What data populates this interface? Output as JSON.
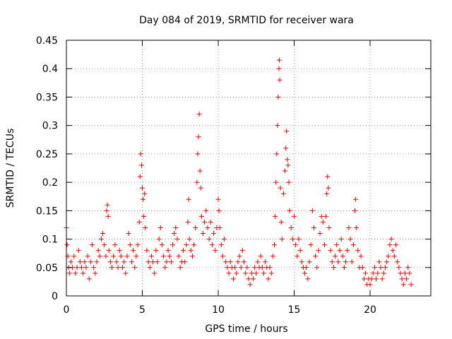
{
  "chart_data": {
    "type": "scatter",
    "title": "Day 084 of 2019, SRMTID for receiver wara",
    "xlabel": "GPS time / hours",
    "ylabel": "SRMTID / TECUs",
    "xlim": [
      0,
      24
    ],
    "ylim": [
      0,
      0.45
    ],
    "x_ticks": [
      0,
      5,
      10,
      15,
      20
    ],
    "x_tick_labels": [
      "0",
      "5",
      "10",
      "15",
      "20"
    ],
    "y_ticks": [
      0,
      0.05,
      0.1,
      0.15,
      0.2,
      0.25,
      0.3,
      0.35,
      0.4,
      0.45
    ],
    "y_tick_labels": [
      "0",
      "0.05",
      "0.1",
      "0.15",
      "0.2",
      "0.25",
      "0.3",
      "0.35",
      "0.4",
      "0.45"
    ],
    "grid": true,
    "marker": "plus",
    "color": "#ee0000",
    "series": [
      {
        "name": "SRMTID",
        "points": [
          [
            0.0,
            0.12
          ],
          [
            0.05,
            0.09
          ],
          [
            0.1,
            0.07
          ],
          [
            0.15,
            0.05
          ],
          [
            0.2,
            0.04
          ],
          [
            0.3,
            0.06
          ],
          [
            0.4,
            0.05
          ],
          [
            0.5,
            0.07
          ],
          [
            0.6,
            0.04
          ],
          [
            0.7,
            0.05
          ],
          [
            0.8,
            0.08
          ],
          [
            0.9,
            0.06
          ],
          [
            1.0,
            0.05
          ],
          [
            1.1,
            0.04
          ],
          [
            1.2,
            0.06
          ],
          [
            1.3,
            0.05
          ],
          [
            1.4,
            0.07
          ],
          [
            1.5,
            0.03
          ],
          [
            1.6,
            0.06
          ],
          [
            1.7,
            0.09
          ],
          [
            1.8,
            0.05
          ],
          [
            1.9,
            0.04
          ],
          [
            2.0,
            0.06
          ],
          [
            2.1,
            0.08
          ],
          [
            2.2,
            0.07
          ],
          [
            2.3,
            0.1
          ],
          [
            2.4,
            0.11
          ],
          [
            2.5,
            0.09
          ],
          [
            2.6,
            0.07
          ],
          [
            2.65,
            0.15
          ],
          [
            2.7,
            0.16
          ],
          [
            2.75,
            0.14
          ],
          [
            2.8,
            0.08
          ],
          [
            2.9,
            0.06
          ],
          [
            3.0,
            0.05
          ],
          [
            3.1,
            0.07
          ],
          [
            3.2,
            0.09
          ],
          [
            3.3,
            0.06
          ],
          [
            3.4,
            0.05
          ],
          [
            3.5,
            0.08
          ],
          [
            3.6,
            0.07
          ],
          [
            3.7,
            0.05
          ],
          [
            3.8,
            0.06
          ],
          [
            3.9,
            0.04
          ],
          [
            4.0,
            0.07
          ],
          [
            4.1,
            0.11
          ],
          [
            4.2,
            0.09
          ],
          [
            4.3,
            0.06
          ],
          [
            4.4,
            0.08
          ],
          [
            4.5,
            0.05
          ],
          [
            4.6,
            0.07
          ],
          [
            4.7,
            0.09
          ],
          [
            4.8,
            0.13
          ],
          [
            4.85,
            0.21
          ],
          [
            4.9,
            0.25
          ],
          [
            4.95,
            0.23
          ],
          [
            5.0,
            0.19
          ],
          [
            5.05,
            0.17
          ],
          [
            5.1,
            0.14
          ],
          [
            5.15,
            0.18
          ],
          [
            5.2,
            0.12
          ],
          [
            5.3,
            0.08
          ],
          [
            5.4,
            0.06
          ],
          [
            5.5,
            0.05
          ],
          [
            5.6,
            0.07
          ],
          [
            5.7,
            0.06
          ],
          [
            5.8,
            0.04
          ],
          [
            5.9,
            0.08
          ],
          [
            6.0,
            0.06
          ],
          [
            6.1,
            0.1
          ],
          [
            6.2,
            0.12
          ],
          [
            6.3,
            0.09
          ],
          [
            6.4,
            0.07
          ],
          [
            6.5,
            0.05
          ],
          [
            6.6,
            0.06
          ],
          [
            6.7,
            0.08
          ],
          [
            6.8,
            0.07
          ],
          [
            6.9,
            0.06
          ],
          [
            7.0,
            0.09
          ],
          [
            7.1,
            0.11
          ],
          [
            7.2,
            0.12
          ],
          [
            7.3,
            0.1
          ],
          [
            7.4,
            0.07
          ],
          [
            7.5,
            0.05
          ],
          [
            7.6,
            0.06
          ],
          [
            7.7,
            0.08
          ],
          [
            7.8,
            0.06
          ],
          [
            7.9,
            0.09
          ],
          [
            8.0,
            0.13
          ],
          [
            8.05,
            0.17
          ],
          [
            8.1,
            0.1
          ],
          [
            8.2,
            0.08
          ],
          [
            8.3,
            0.07
          ],
          [
            8.4,
            0.09
          ],
          [
            8.5,
            0.12
          ],
          [
            8.6,
            0.2
          ],
          [
            8.65,
            0.25
          ],
          [
            8.7,
            0.28
          ],
          [
            8.75,
            0.32
          ],
          [
            8.8,
            0.22
          ],
          [
            8.85,
            0.19
          ],
          [
            8.9,
            0.14
          ],
          [
            9.0,
            0.11
          ],
          [
            9.1,
            0.13
          ],
          [
            9.2,
            0.15
          ],
          [
            9.3,
            0.12
          ],
          [
            9.4,
            0.1
          ],
          [
            9.5,
            0.13
          ],
          [
            9.6,
            0.09
          ],
          [
            9.7,
            0.11
          ],
          [
            9.8,
            0.08
          ],
          [
            9.9,
            0.12
          ],
          [
            10.0,
            0.17
          ],
          [
            10.05,
            0.15
          ],
          [
            10.1,
            0.12
          ],
          [
            10.2,
            0.09
          ],
          [
            10.3,
            0.07
          ],
          [
            10.4,
            0.1
          ],
          [
            10.5,
            0.06
          ],
          [
            10.6,
            0.05
          ],
          [
            10.7,
            0.04
          ],
          [
            10.8,
            0.06
          ],
          [
            10.9,
            0.05
          ],
          [
            11.0,
            0.03
          ],
          [
            11.1,
            0.05
          ],
          [
            11.2,
            0.04
          ],
          [
            11.3,
            0.06
          ],
          [
            11.4,
            0.07
          ],
          [
            11.5,
            0.05
          ],
          [
            11.6,
            0.08
          ],
          [
            11.7,
            0.06
          ],
          [
            11.8,
            0.04
          ],
          [
            11.9,
            0.05
          ],
          [
            12.0,
            0.03
          ],
          [
            12.1,
            0.02
          ],
          [
            12.2,
            0.04
          ],
          [
            12.3,
            0.03
          ],
          [
            12.4,
            0.05
          ],
          [
            12.5,
            0.04
          ],
          [
            12.6,
            0.06
          ],
          [
            12.7,
            0.05
          ],
          [
            12.8,
            0.07
          ],
          [
            12.9,
            0.05
          ],
          [
            13.0,
            0.04
          ],
          [
            13.1,
            0.06
          ],
          [
            13.2,
            0.05
          ],
          [
            13.3,
            0.03
          ],
          [
            13.4,
            0.05
          ],
          [
            13.5,
            0.04
          ],
          [
            13.6,
            0.07
          ],
          [
            13.7,
            0.09
          ],
          [
            13.75,
            0.14
          ],
          [
            13.8,
            0.2
          ],
          [
            13.85,
            0.25
          ],
          [
            13.9,
            0.3
          ],
          [
            13.95,
            0.35
          ],
          [
            14.0,
            0.4
          ],
          [
            14.02,
            0.415
          ],
          [
            14.05,
            0.38
          ],
          [
            14.1,
            0.19
          ],
          [
            14.15,
            0.13
          ],
          [
            14.2,
            0.1
          ],
          [
            14.3,
            0.18
          ],
          [
            14.4,
            0.22
          ],
          [
            14.45,
            0.26
          ],
          [
            14.5,
            0.29
          ],
          [
            14.55,
            0.24
          ],
          [
            14.6,
            0.23
          ],
          [
            14.65,
            0.2
          ],
          [
            14.7,
            0.15
          ],
          [
            14.8,
            0.12
          ],
          [
            14.9,
            0.1
          ],
          [
            15.0,
            0.14
          ],
          [
            15.1,
            0.09
          ],
          [
            15.2,
            0.07
          ],
          [
            15.3,
            0.1
          ],
          [
            15.4,
            0.08
          ],
          [
            15.5,
            0.06
          ],
          [
            15.6,
            0.05
          ],
          [
            15.7,
            0.04
          ],
          [
            15.8,
            0.05
          ],
          [
            15.9,
            0.03
          ],
          [
            16.0,
            0.06
          ],
          [
            16.1,
            0.09
          ],
          [
            16.2,
            0.15
          ],
          [
            16.3,
            0.12
          ],
          [
            16.4,
            0.07
          ],
          [
            16.5,
            0.05
          ],
          [
            16.6,
            0.08
          ],
          [
            16.7,
            0.11
          ],
          [
            16.8,
            0.14
          ],
          [
            16.9,
            0.13
          ],
          [
            17.0,
            0.09
          ],
          [
            17.1,
            0.14
          ],
          [
            17.15,
            0.18
          ],
          [
            17.2,
            0.21
          ],
          [
            17.25,
            0.19
          ],
          [
            17.3,
            0.12
          ],
          [
            17.4,
            0.08
          ],
          [
            17.5,
            0.06
          ],
          [
            17.6,
            0.05
          ],
          [
            17.7,
            0.07
          ],
          [
            17.8,
            0.09
          ],
          [
            17.9,
            0.06
          ],
          [
            18.0,
            0.08
          ],
          [
            18.1,
            0.1
          ],
          [
            18.2,
            0.07
          ],
          [
            18.3,
            0.05
          ],
          [
            18.4,
            0.06
          ],
          [
            18.5,
            0.08
          ],
          [
            18.6,
            0.12
          ],
          [
            18.7,
            0.1
          ],
          [
            18.8,
            0.06
          ],
          [
            18.9,
            0.09
          ],
          [
            19.0,
            0.15
          ],
          [
            19.05,
            0.17
          ],
          [
            19.1,
            0.12
          ],
          [
            19.2,
            0.08
          ],
          [
            19.3,
            0.05
          ],
          [
            19.4,
            0.07
          ],
          [
            19.5,
            0.05
          ],
          [
            19.6,
            0.03
          ],
          [
            19.7,
            0.04
          ],
          [
            19.8,
            0.02
          ],
          [
            19.9,
            0.03
          ],
          [
            20.0,
            0.02
          ],
          [
            20.1,
            0.03
          ],
          [
            20.2,
            0.04
          ],
          [
            20.3,
            0.05
          ],
          [
            20.4,
            0.03
          ],
          [
            20.5,
            0.04
          ],
          [
            20.6,
            0.06
          ],
          [
            20.7,
            0.05
          ],
          [
            20.8,
            0.03
          ],
          [
            20.9,
            0.04
          ],
          [
            21.0,
            0.05
          ],
          [
            21.1,
            0.06
          ],
          [
            21.2,
            0.07
          ],
          [
            21.3,
            0.09
          ],
          [
            21.4,
            0.1
          ],
          [
            21.5,
            0.08
          ],
          [
            21.6,
            0.07
          ],
          [
            21.7,
            0.09
          ],
          [
            21.8,
            0.06
          ],
          [
            21.9,
            0.05
          ],
          [
            22.0,
            0.04
          ],
          [
            22.1,
            0.03
          ],
          [
            22.2,
            0.02
          ],
          [
            22.3,
            0.04
          ],
          [
            22.4,
            0.03
          ],
          [
            22.5,
            0.05
          ],
          [
            22.6,
            0.04
          ],
          [
            22.7,
            0.02
          ]
        ]
      }
    ]
  }
}
